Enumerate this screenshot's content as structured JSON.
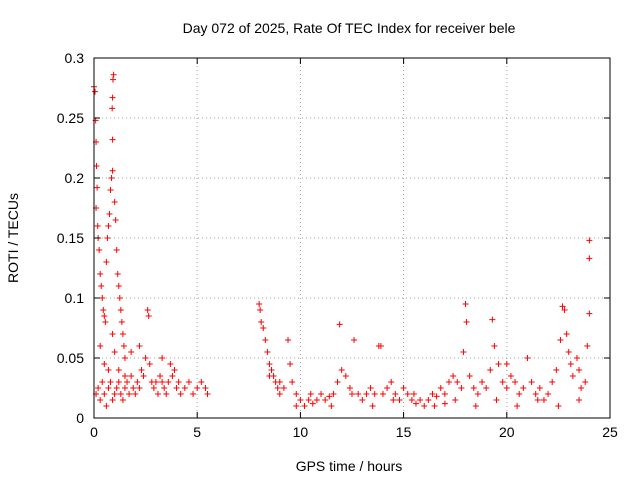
{
  "chart_data": {
    "type": "scatter",
    "title": "Day 072 of 2025, Rate Of TEC Index for receiver bele",
    "xlabel": "GPS time / hours",
    "ylabel": "ROTI / TECUs",
    "xlim": [
      0,
      25
    ],
    "ylim": [
      0,
      0.3
    ],
    "x_ticks": [
      0,
      5,
      10,
      15,
      20,
      25
    ],
    "y_ticks": [
      0,
      0.05,
      0.1,
      0.15,
      0.2,
      0.25,
      0.3
    ],
    "x_tick_labels": [
      "0",
      "5",
      "10",
      "15",
      "20",
      "25"
    ],
    "y_tick_labels": [
      "0",
      "0.05",
      "0.1",
      "0.15",
      "0.2",
      "0.25",
      "0.3"
    ],
    "grid": true,
    "marker": "+",
    "color": "#ff0000",
    "points": [
      [
        0.0,
        0.276
      ],
      [
        0.05,
        0.272
      ],
      [
        0.08,
        0.248
      ],
      [
        0.1,
        0.23
      ],
      [
        0.12,
        0.21
      ],
      [
        0.15,
        0.192
      ],
      [
        0.1,
        0.175
      ],
      [
        0.18,
        0.16
      ],
      [
        0.2,
        0.15
      ],
      [
        0.25,
        0.14
      ],
      [
        0.3,
        0.12
      ],
      [
        0.35,
        0.11
      ],
      [
        0.4,
        0.1
      ],
      [
        0.45,
        0.09
      ],
      [
        0.5,
        0.085
      ],
      [
        0.55,
        0.08
      ],
      [
        0.6,
        0.13
      ],
      [
        0.65,
        0.15
      ],
      [
        0.7,
        0.16
      ],
      [
        0.75,
        0.17
      ],
      [
        0.8,
        0.19
      ],
      [
        0.85,
        0.2
      ],
      [
        0.9,
        0.206
      ],
      [
        0.88,
        0.258
      ],
      [
        0.9,
        0.267
      ],
      [
        0.92,
        0.282
      ],
      [
        0.95,
        0.286
      ],
      [
        0.9,
        0.232
      ],
      [
        1.0,
        0.18
      ],
      [
        1.05,
        0.165
      ],
      [
        1.1,
        0.14
      ],
      [
        1.15,
        0.12
      ],
      [
        1.2,
        0.11
      ],
      [
        1.25,
        0.1
      ],
      [
        1.3,
        0.09
      ],
      [
        1.35,
        0.08
      ],
      [
        1.4,
        0.07
      ],
      [
        1.45,
        0.06
      ],
      [
        1.5,
        0.05
      ],
      [
        0.3,
        0.06
      ],
      [
        0.5,
        0.045
      ],
      [
        0.7,
        0.04
      ],
      [
        0.9,
        0.07
      ],
      [
        1.0,
        0.055
      ],
      [
        1.2,
        0.04
      ],
      [
        1.5,
        0.035
      ],
      [
        0.1,
        0.02
      ],
      [
        0.2,
        0.025
      ],
      [
        0.3,
        0.015
      ],
      [
        0.4,
        0.03
      ],
      [
        0.5,
        0.02
      ],
      [
        0.6,
        0.01
      ],
      [
        0.7,
        0.025
      ],
      [
        0.8,
        0.03
      ],
      [
        0.9,
        0.015
      ],
      [
        1.0,
        0.02
      ],
      [
        1.1,
        0.025
      ],
      [
        1.2,
        0.03
      ],
      [
        1.3,
        0.02
      ],
      [
        1.4,
        0.015
      ],
      [
        1.5,
        0.025
      ],
      [
        1.6,
        0.03
      ],
      [
        1.7,
        0.02
      ],
      [
        1.8,
        0.035
      ],
      [
        1.9,
        0.025
      ],
      [
        2.0,
        0.02
      ],
      [
        2.1,
        0.03
      ],
      [
        2.2,
        0.025
      ],
      [
        2.3,
        0.04
      ],
      [
        2.4,
        0.035
      ],
      [
        2.5,
        0.05
      ],
      [
        2.6,
        0.09
      ],
      [
        2.65,
        0.085
      ],
      [
        2.7,
        0.045
      ],
      [
        2.8,
        0.03
      ],
      [
        2.9,
        0.025
      ],
      [
        3.0,
        0.03
      ],
      [
        3.1,
        0.02
      ],
      [
        3.2,
        0.035
      ],
      [
        3.3,
        0.03
      ],
      [
        3.4,
        0.025
      ],
      [
        3.5,
        0.02
      ],
      [
        3.6,
        0.03
      ],
      [
        3.7,
        0.045
      ],
      [
        3.8,
        0.035
      ],
      [
        3.9,
        0.04
      ],
      [
        4.0,
        0.025
      ],
      [
        4.1,
        0.03
      ],
      [
        4.2,
        0.02
      ],
      [
        4.4,
        0.025
      ],
      [
        4.6,
        0.03
      ],
      [
        4.8,
        0.02
      ],
      [
        5.0,
        0.025
      ],
      [
        5.2,
        0.03
      ],
      [
        5.4,
        0.025
      ],
      [
        5.5,
        0.02
      ],
      [
        2.2,
        0.06
      ],
      [
        1.8,
        0.055
      ],
      [
        3.3,
        0.05
      ],
      [
        8.0,
        0.095
      ],
      [
        8.05,
        0.09
      ],
      [
        8.1,
        0.08
      ],
      [
        8.2,
        0.075
      ],
      [
        8.3,
        0.065
      ],
      [
        8.4,
        0.055
      ],
      [
        8.5,
        0.045
      ],
      [
        8.6,
        0.04
      ],
      [
        8.7,
        0.035
      ],
      [
        8.8,
        0.03
      ],
      [
        8.9,
        0.025
      ],
      [
        9.0,
        0.03
      ],
      [
        9.2,
        0.025
      ],
      [
        9.4,
        0.065
      ],
      [
        9.5,
        0.045
      ],
      [
        9.6,
        0.03
      ],
      [
        9.8,
        0.02
      ],
      [
        10.0,
        0.015
      ],
      [
        10.2,
        0.01
      ],
      [
        10.4,
        0.015
      ],
      [
        10.6,
        0.012
      ],
      [
        10.8,
        0.015
      ],
      [
        11.0,
        0.02
      ],
      [
        11.2,
        0.015
      ],
      [
        11.4,
        0.018
      ],
      [
        11.6,
        0.02
      ],
      [
        11.8,
        0.03
      ],
      [
        11.9,
        0.078
      ],
      [
        12.0,
        0.04
      ],
      [
        12.2,
        0.035
      ],
      [
        12.4,
        0.025
      ],
      [
        12.6,
        0.065
      ],
      [
        12.8,
        0.02
      ],
      [
        13.0,
        0.015
      ],
      [
        13.2,
        0.02
      ],
      [
        13.4,
        0.025
      ],
      [
        13.6,
        0.02
      ],
      [
        13.8,
        0.06
      ],
      [
        13.9,
        0.06
      ],
      [
        14.0,
        0.02
      ],
      [
        14.2,
        0.025
      ],
      [
        14.4,
        0.03
      ],
      [
        14.6,
        0.02
      ],
      [
        14.8,
        0.015
      ],
      [
        15.0,
        0.025
      ],
      [
        15.2,
        0.02
      ],
      [
        15.4,
        0.015
      ],
      [
        15.6,
        0.012
      ],
      [
        15.8,
        0.015
      ],
      [
        16.0,
        0.01
      ],
      [
        16.2,
        0.015
      ],
      [
        16.4,
        0.02
      ],
      [
        16.6,
        0.018
      ],
      [
        16.8,
        0.025
      ],
      [
        17.0,
        0.02
      ],
      [
        17.2,
        0.03
      ],
      [
        17.4,
        0.035
      ],
      [
        17.6,
        0.03
      ],
      [
        17.8,
        0.025
      ],
      [
        17.9,
        0.055
      ],
      [
        18.0,
        0.095
      ],
      [
        18.05,
        0.08
      ],
      [
        18.2,
        0.035
      ],
      [
        18.4,
        0.025
      ],
      [
        18.6,
        0.02
      ],
      [
        18.8,
        0.03
      ],
      [
        19.0,
        0.025
      ],
      [
        19.2,
        0.04
      ],
      [
        19.3,
        0.082
      ],
      [
        19.4,
        0.06
      ],
      [
        19.6,
        0.045
      ],
      [
        19.8,
        0.03
      ],
      [
        20.0,
        0.025
      ],
      [
        20.2,
        0.035
      ],
      [
        20.4,
        0.03
      ],
      [
        20.6,
        0.02
      ],
      [
        20.8,
        0.025
      ],
      [
        21.0,
        0.05
      ],
      [
        21.2,
        0.03
      ],
      [
        21.4,
        0.02
      ],
      [
        21.6,
        0.025
      ],
      [
        21.8,
        0.015
      ],
      [
        22.0,
        0.02
      ],
      [
        22.2,
        0.03
      ],
      [
        22.4,
        0.04
      ],
      [
        22.6,
        0.065
      ],
      [
        22.7,
        0.093
      ],
      [
        22.8,
        0.09
      ],
      [
        22.9,
        0.07
      ],
      [
        23.0,
        0.055
      ],
      [
        23.1,
        0.045
      ],
      [
        23.2,
        0.035
      ],
      [
        23.4,
        0.05
      ],
      [
        23.5,
        0.04
      ],
      [
        23.6,
        0.025
      ],
      [
        23.8,
        0.03
      ],
      [
        23.9,
        0.06
      ],
      [
        24.0,
        0.148
      ],
      [
        24.0,
        0.133
      ],
      [
        24.0,
        0.087
      ],
      [
        9.8,
        0.01
      ],
      [
        10.5,
        0.02
      ],
      [
        11.5,
        0.01
      ],
      [
        12.5,
        0.02
      ],
      [
        13.5,
        0.01
      ],
      [
        14.5,
        0.015
      ],
      [
        15.5,
        0.02
      ],
      [
        16.5,
        0.01
      ],
      [
        17.5,
        0.015
      ],
      [
        18.5,
        0.01
      ],
      [
        19.5,
        0.015
      ],
      [
        20.5,
        0.01
      ],
      [
        21.5,
        0.015
      ],
      [
        22.5,
        0.01
      ],
      [
        23.5,
        0.015
      ],
      [
        9.0,
        0.02
      ],
      [
        8.5,
        0.035
      ],
      [
        17.0,
        0.012
      ],
      [
        20.0,
        0.045
      ]
    ]
  }
}
